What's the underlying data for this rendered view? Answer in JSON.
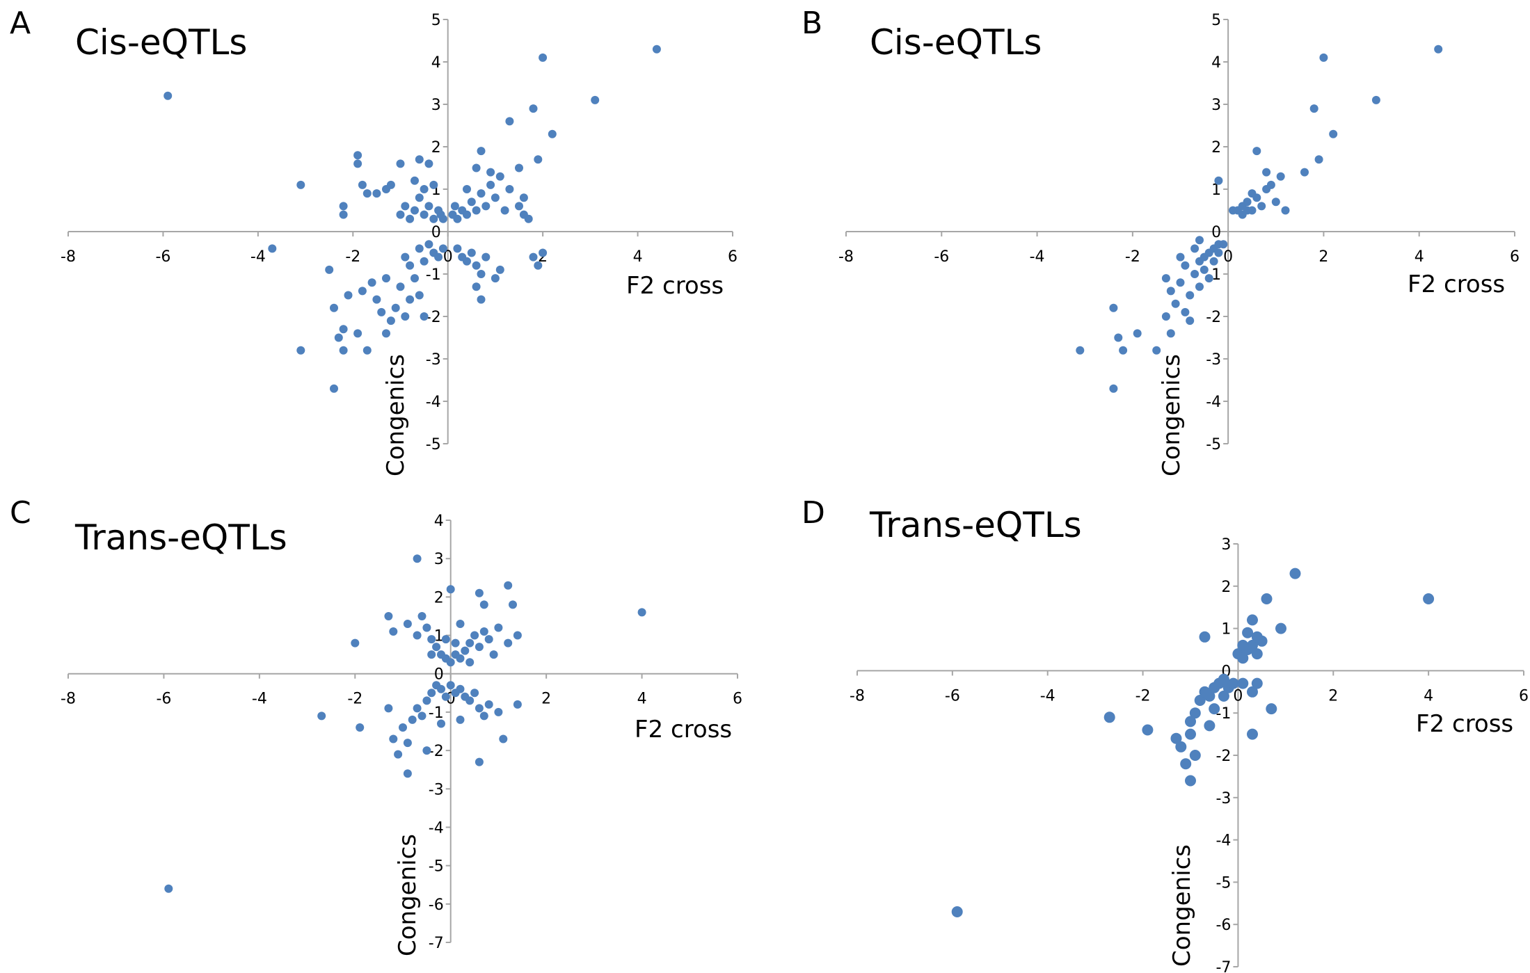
{
  "figure": {
    "background": "#ffffff",
    "point_color": "#4f81bd",
    "axis_color": "#a6a6a6"
  },
  "chart_data": [
    {
      "panel": "A",
      "title": "Cis-eQTLs",
      "type": "scatter",
      "xlabel": "F2 cross",
      "ylabel": "Congenics",
      "xlim": [
        -8,
        6
      ],
      "ylim": [
        -5,
        5
      ],
      "x_ticks": [
        -8,
        -6,
        -4,
        -2,
        0,
        2,
        4,
        6
      ],
      "y_ticks": [
        -5,
        -4,
        -3,
        -2,
        -1,
        0,
        1,
        2,
        3,
        4,
        5
      ],
      "grid": false,
      "point_size": "small",
      "points": [
        [
          -5.9,
          3.2
        ],
        [
          -3.1,
          1.1
        ],
        [
          -3.7,
          -0.4
        ],
        [
          -3.1,
          -2.8
        ],
        [
          -2.4,
          -1.8
        ],
        [
          -2.3,
          -2.5
        ],
        [
          -2.2,
          -2.3
        ],
        [
          -2.2,
          -2.8
        ],
        [
          -2.4,
          -3.7
        ],
        [
          -2.5,
          -0.9
        ],
        [
          -2.1,
          -1.5
        ],
        [
          -1.9,
          -2.4
        ],
        [
          -1.7,
          -2.8
        ],
        [
          -2.2,
          0.4
        ],
        [
          -2.2,
          0.6
        ],
        [
          -1.9,
          1.8
        ],
        [
          -1.9,
          1.6
        ],
        [
          -1.8,
          1.1
        ],
        [
          -1.7,
          0.9
        ],
        [
          -1.5,
          0.9
        ],
        [
          -1.3,
          1.0
        ],
        [
          -1.2,
          1.1
        ],
        [
          -1.0,
          1.6
        ],
        [
          -0.6,
          1.7
        ],
        [
          -0.4,
          1.6
        ],
        [
          -1.8,
          -1.4
        ],
        [
          -1.6,
          -1.2
        ],
        [
          -1.5,
          -1.6
        ],
        [
          -1.4,
          -1.9
        ],
        [
          -1.3,
          -1.1
        ],
        [
          -1.2,
          -2.1
        ],
        [
          -1.1,
          -1.8
        ],
        [
          -1.0,
          -1.3
        ],
        [
          -1.3,
          -2.4
        ],
        [
          -0.9,
          -2.0
        ],
        [
          -0.8,
          -1.6
        ],
        [
          -0.9,
          -0.6
        ],
        [
          -0.8,
          -0.8
        ],
        [
          -0.7,
          -1.1
        ],
        [
          -0.6,
          -0.4
        ],
        [
          -0.5,
          -0.7
        ],
        [
          -0.4,
          -0.3
        ],
        [
          -0.3,
          -0.5
        ],
        [
          -0.2,
          -0.6
        ],
        [
          -0.1,
          -0.4
        ],
        [
          -0.6,
          -1.5
        ],
        [
          -0.5,
          -2.0
        ],
        [
          -1.0,
          0.4
        ],
        [
          -0.9,
          0.6
        ],
        [
          -0.8,
          0.3
        ],
        [
          -0.7,
          0.5
        ],
        [
          -0.6,
          0.8
        ],
        [
          -0.5,
          0.4
        ],
        [
          -0.4,
          0.6
        ],
        [
          -0.3,
          0.3
        ],
        [
          -0.2,
          0.5
        ],
        [
          -0.7,
          1.2
        ],
        [
          -0.5,
          1.0
        ],
        [
          -0.3,
          1.1
        ],
        [
          0.2,
          0.3
        ],
        [
          0.3,
          0.5
        ],
        [
          0.4,
          0.4
        ],
        [
          0.5,
          0.7
        ],
        [
          0.6,
          0.5
        ],
        [
          0.7,
          0.9
        ],
        [
          0.8,
          0.6
        ],
        [
          0.9,
          1.1
        ],
        [
          1.0,
          0.8
        ],
        [
          1.1,
          1.3
        ],
        [
          1.2,
          0.5
        ],
        [
          1.3,
          1.0
        ],
        [
          0.6,
          1.5
        ],
        [
          0.7,
          1.9
        ],
        [
          0.9,
          1.4
        ],
        [
          0.4,
          1.0
        ],
        [
          1.5,
          0.6
        ],
        [
          1.6,
          0.8
        ],
        [
          0.2,
          -0.4
        ],
        [
          0.3,
          -0.6
        ],
        [
          0.4,
          -0.7
        ],
        [
          0.5,
          -0.5
        ],
        [
          0.6,
          -0.8
        ],
        [
          0.7,
          -1.0
        ],
        [
          0.8,
          -0.6
        ],
        [
          0.6,
          -1.3
        ],
        [
          0.7,
          -1.6
        ],
        [
          1.0,
          -1.1
        ],
        [
          1.1,
          -0.9
        ],
        [
          1.8,
          -0.6
        ],
        [
          1.9,
          -0.8
        ],
        [
          2.0,
          -0.5
        ],
        [
          1.3,
          2.6
        ],
        [
          1.5,
          1.5
        ],
        [
          1.8,
          2.9
        ],
        [
          1.9,
          1.7
        ],
        [
          2.0,
          4.1
        ],
        [
          2.2,
          2.3
        ],
        [
          3.1,
          3.1
        ],
        [
          4.4,
          4.3
        ],
        [
          1.6,
          0.4
        ],
        [
          1.7,
          0.3
        ],
        [
          0.1,
          0.4
        ],
        [
          0.15,
          0.6
        ],
        [
          -0.1,
          0.3
        ],
        [
          -0.15,
          0.4
        ]
      ]
    },
    {
      "panel": "B",
      "title": "Cis-eQTLs",
      "type": "scatter",
      "xlabel": "F2 cross",
      "ylabel": "Congenics",
      "xlim": [
        -8,
        6
      ],
      "ylim": [
        -5,
        5
      ],
      "x_ticks": [
        -8,
        -6,
        -4,
        -2,
        0,
        2,
        4,
        6
      ],
      "y_ticks": [
        -5,
        -4,
        -3,
        -2,
        -1,
        0,
        1,
        2,
        3,
        4,
        5
      ],
      "grid": false,
      "point_size": "small",
      "points": [
        [
          -3.1,
          -2.8
        ],
        [
          -2.4,
          -1.8
        ],
        [
          -2.3,
          -2.5
        ],
        [
          -2.2,
          -2.8
        ],
        [
          -2.4,
          -3.7
        ],
        [
          -1.9,
          -2.4
        ],
        [
          -1.5,
          -2.8
        ],
        [
          -1.3,
          -1.1
        ],
        [
          -1.2,
          -1.4
        ],
        [
          -1.1,
          -1.7
        ],
        [
          -1.0,
          -1.2
        ],
        [
          -0.9,
          -1.9
        ],
        [
          -0.8,
          -1.5
        ],
        [
          -0.7,
          -1.0
        ],
        [
          -0.6,
          -0.7
        ],
        [
          -0.5,
          -0.6
        ],
        [
          -0.4,
          -0.5
        ],
        [
          -0.3,
          -0.4
        ],
        [
          -0.2,
          -0.3
        ],
        [
          -0.1,
          -0.3
        ],
        [
          -1.3,
          -2.0
        ],
        [
          -1.2,
          -2.4
        ],
        [
          -0.8,
          -2.1
        ],
        [
          -0.6,
          -1.3
        ],
        [
          -0.5,
          -0.9
        ],
        [
          -0.4,
          -1.1
        ],
        [
          -0.3,
          -0.7
        ],
        [
          -0.2,
          -0.5
        ],
        [
          -0.7,
          -0.4
        ],
        [
          -0.9,
          -0.8
        ],
        [
          -1.0,
          -0.6
        ],
        [
          -0.2,
          1.2
        ],
        [
          0.2,
          0.5
        ],
        [
          0.3,
          0.6
        ],
        [
          0.4,
          0.7
        ],
        [
          0.5,
          0.5
        ],
        [
          0.6,
          0.8
        ],
        [
          0.7,
          0.6
        ],
        [
          0.8,
          1.0
        ],
        [
          0.9,
          1.1
        ],
        [
          1.0,
          0.7
        ],
        [
          1.1,
          1.3
        ],
        [
          1.2,
          0.5
        ],
        [
          0.6,
          1.9
        ],
        [
          0.8,
          1.4
        ],
        [
          0.5,
          0.9
        ],
        [
          0.3,
          0.4
        ],
        [
          0.4,
          0.5
        ],
        [
          1.6,
          1.4
        ],
        [
          1.8,
          2.9
        ],
        [
          1.9,
          1.7
        ],
        [
          2.0,
          4.1
        ],
        [
          2.2,
          2.3
        ],
        [
          3.1,
          3.1
        ],
        [
          4.4,
          4.3
        ],
        [
          -0.6,
          -0.2
        ],
        [
          0.1,
          0.5
        ]
      ]
    },
    {
      "panel": "C",
      "title": "Trans-eQTLs",
      "type": "scatter",
      "xlabel": "F2 cross",
      "ylabel": "Congenics",
      "xlim": [
        -8,
        6
      ],
      "ylim": [
        -7,
        4
      ],
      "x_ticks": [
        -8,
        -6,
        -4,
        -2,
        0,
        2,
        4,
        6
      ],
      "y_ticks": [
        -7,
        -6,
        -5,
        -4,
        -3,
        -2,
        -1,
        0,
        1,
        2,
        3,
        4
      ],
      "grid": false,
      "point_size": "small",
      "points": [
        [
          -5.9,
          -5.6
        ],
        [
          4.0,
          1.6
        ],
        [
          -2.0,
          0.8
        ],
        [
          -1.3,
          1.5
        ],
        [
          -1.2,
          1.1
        ],
        [
          -0.9,
          1.3
        ],
        [
          -0.7,
          1.0
        ],
        [
          -0.6,
          1.5
        ],
        [
          -0.5,
          1.2
        ],
        [
          -0.4,
          0.9
        ],
        [
          -0.3,
          0.7
        ],
        [
          -0.2,
          0.5
        ],
        [
          -0.1,
          0.4
        ],
        [
          0.0,
          0.3
        ],
        [
          0.1,
          0.5
        ],
        [
          0.2,
          0.4
        ],
        [
          0.3,
          0.6
        ],
        [
          0.4,
          0.8
        ],
        [
          0.5,
          1.0
        ],
        [
          0.6,
          0.7
        ],
        [
          0.7,
          1.1
        ],
        [
          0.8,
          0.9
        ],
        [
          0.9,
          0.5
        ],
        [
          1.0,
          1.2
        ],
        [
          1.2,
          0.8
        ],
        [
          1.4,
          1.0
        ],
        [
          -0.7,
          3.0
        ],
        [
          0.0,
          2.2
        ],
        [
          0.6,
          2.1
        ],
        [
          0.7,
          1.8
        ],
        [
          1.2,
          2.3
        ],
        [
          1.3,
          1.8
        ],
        [
          0.2,
          1.3
        ],
        [
          -0.1,
          0.9
        ],
        [
          0.1,
          0.8
        ],
        [
          -0.4,
          0.5
        ],
        [
          0.4,
          0.3
        ],
        [
          -2.7,
          -1.1
        ],
        [
          -1.9,
          -1.4
        ],
        [
          -1.3,
          -0.9
        ],
        [
          -1.2,
          -1.7
        ],
        [
          -1.1,
          -2.1
        ],
        [
          -1.0,
          -1.4
        ],
        [
          -0.9,
          -1.8
        ],
        [
          -0.8,
          -1.2
        ],
        [
          -0.7,
          -0.9
        ],
        [
          -0.6,
          -1.1
        ],
        [
          -0.5,
          -0.7
        ],
        [
          -0.4,
          -0.5
        ],
        [
          -0.3,
          -0.3
        ],
        [
          -0.2,
          -0.4
        ],
        [
          -0.1,
          -0.6
        ],
        [
          0.0,
          -0.3
        ],
        [
          0.1,
          -0.5
        ],
        [
          0.2,
          -0.4
        ],
        [
          0.3,
          -0.6
        ],
        [
          0.4,
          -0.7
        ],
        [
          0.5,
          -0.5
        ],
        [
          0.6,
          -0.9
        ],
        [
          0.7,
          -1.1
        ],
        [
          0.8,
          -0.8
        ],
        [
          1.0,
          -1.0
        ],
        [
          1.4,
          -0.8
        ],
        [
          -0.9,
          -2.6
        ],
        [
          -0.5,
          -2.0
        ],
        [
          0.6,
          -2.3
        ],
        [
          1.1,
          -1.7
        ],
        [
          0.2,
          -1.2
        ],
        [
          -0.2,
          -1.3
        ]
      ]
    },
    {
      "panel": "D",
      "title": "Trans-eQTLs",
      "type": "scatter",
      "xlabel": "F2 cross",
      "ylabel": "Congenics",
      "xlim": [
        -8,
        6
      ],
      "ylim": [
        -7,
        3
      ],
      "x_ticks": [
        -8,
        -6,
        -4,
        -2,
        0,
        2,
        4,
        6
      ],
      "y_ticks": [
        -7,
        -6,
        -5,
        -4,
        -3,
        -2,
        -1,
        0,
        1,
        2,
        3
      ],
      "grid": false,
      "point_size": "large",
      "points": [
        [
          -5.9,
          -5.7
        ],
        [
          4.0,
          1.7
        ],
        [
          1.2,
          2.3
        ],
        [
          0.6,
          1.7
        ],
        [
          0.3,
          1.2
        ],
        [
          0.9,
          1.0
        ],
        [
          -0.7,
          0.8
        ],
        [
          0.0,
          0.4
        ],
        [
          0.1,
          0.3
        ],
        [
          0.2,
          0.5
        ],
        [
          0.3,
          0.6
        ],
        [
          0.4,
          0.4
        ],
        [
          0.5,
          0.7
        ],
        [
          0.1,
          0.6
        ],
        [
          0.2,
          0.9
        ],
        [
          0.4,
          0.8
        ],
        [
          -2.7,
          -1.1
        ],
        [
          -1.9,
          -1.4
        ],
        [
          -1.3,
          -1.6
        ],
        [
          -1.2,
          -1.8
        ],
        [
          -1.1,
          -2.2
        ],
        [
          -1.0,
          -1.2
        ],
        [
          -0.9,
          -1.0
        ],
        [
          -0.8,
          -0.7
        ],
        [
          -0.7,
          -0.5
        ],
        [
          -0.6,
          -0.6
        ],
        [
          -0.5,
          -0.4
        ],
        [
          -0.4,
          -0.3
        ],
        [
          -0.3,
          -0.2
        ],
        [
          -0.2,
          -0.4
        ],
        [
          -0.1,
          -0.3
        ],
        [
          -1.0,
          -1.5
        ],
        [
          -0.9,
          -2.0
        ],
        [
          -1.0,
          -2.6
        ],
        [
          -0.6,
          -1.3
        ],
        [
          -0.5,
          -0.9
        ],
        [
          0.3,
          -0.5
        ],
        [
          0.4,
          -0.3
        ],
        [
          0.7,
          -0.9
        ],
        [
          0.3,
          -1.5
        ],
        [
          0.1,
          -0.3
        ],
        [
          -0.3,
          -0.6
        ]
      ]
    }
  ]
}
